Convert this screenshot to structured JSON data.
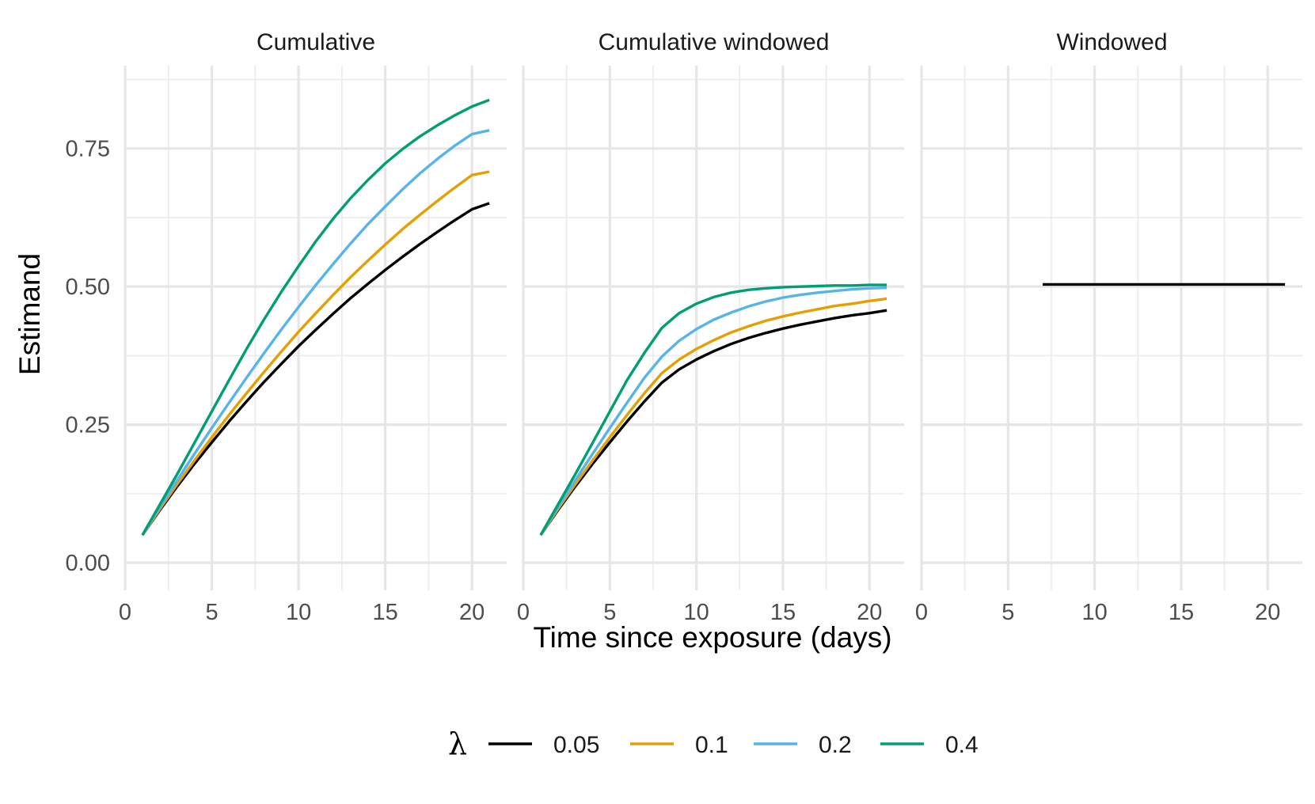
{
  "chart_data": {
    "type": "line",
    "xlabel": "Time since exposure (days)",
    "ylabel": "Estimand",
    "xlim": [
      0,
      22
    ],
    "ylim": [
      -0.05,
      0.9
    ],
    "x_ticks": [
      0,
      5,
      10,
      15,
      20
    ],
    "y_ticks": [
      0.0,
      0.25,
      0.5,
      0.75
    ],
    "y_tick_labels": [
      "0.00",
      "0.25",
      "0.50",
      "0.75"
    ],
    "grid": true,
    "legend": {
      "title": "λ",
      "position": "bottom",
      "entries": [
        {
          "label": "0.05",
          "color": "#000000"
        },
        {
          "label": "0.1",
          "color": "#E69F00"
        },
        {
          "label": "0.2",
          "color": "#56B4E9"
        },
        {
          "label": "0.4",
          "color": "#009E73"
        }
      ]
    },
    "panels": [
      {
        "title": "Cumulative",
        "series": [
          {
            "name": "0.05",
            "color": "#000000",
            "x": [
              1,
              2,
              3,
              4,
              5,
              6,
              7,
              8,
              9,
              10,
              11,
              12,
              13,
              14,
              15,
              16,
              17,
              18,
              19,
              20,
              21
            ],
            "y": [
              0.05,
              0.095,
              0.138,
              0.179,
              0.218,
              0.256,
              0.292,
              0.327,
              0.36,
              0.392,
              0.422,
              0.451,
              0.479,
              0.505,
              0.53,
              0.554,
              0.577,
              0.599,
              0.62,
              0.64,
              0.651
            ]
          },
          {
            "name": "0.1",
            "color": "#E69F00",
            "x": [
              1,
              2,
              3,
              4,
              5,
              6,
              7,
              8,
              9,
              10,
              11,
              12,
              13,
              14,
              15,
              16,
              17,
              18,
              19,
              20,
              21
            ],
            "y": [
              0.05,
              0.097,
              0.142,
              0.185,
              0.227,
              0.268,
              0.307,
              0.345,
              0.382,
              0.418,
              0.452,
              0.485,
              0.517,
              0.547,
              0.576,
              0.604,
              0.63,
              0.655,
              0.679,
              0.702,
              0.708
            ]
          },
          {
            "name": "0.2",
            "color": "#56B4E9",
            "x": [
              1,
              2,
              3,
              4,
              5,
              6,
              7,
              8,
              9,
              10,
              11,
              12,
              13,
              14,
              15,
              16,
              17,
              18,
              19,
              20,
              21
            ],
            "y": [
              0.05,
              0.1,
              0.149,
              0.197,
              0.244,
              0.29,
              0.335,
              0.379,
              0.422,
              0.463,
              0.503,
              0.541,
              0.578,
              0.613,
              0.645,
              0.676,
              0.705,
              0.731,
              0.755,
              0.776,
              0.783
            ]
          },
          {
            "name": "0.4",
            "color": "#009E73",
            "x": [
              1,
              2,
              3,
              4,
              5,
              6,
              7,
              8,
              9,
              10,
              11,
              12,
              13,
              14,
              15,
              16,
              17,
              18,
              19,
              20,
              21
            ],
            "y": [
              0.05,
              0.105,
              0.16,
              0.217,
              0.274,
              0.331,
              0.387,
              0.44,
              0.49,
              0.537,
              0.582,
              0.623,
              0.66,
              0.693,
              0.723,
              0.749,
              0.772,
              0.792,
              0.81,
              0.826,
              0.838
            ]
          }
        ]
      },
      {
        "title": "Cumulative windowed",
        "series": [
          {
            "name": "0.05",
            "color": "#000000",
            "x": [
              1,
              2,
              3,
              4,
              5,
              6,
              7,
              8,
              9,
              10,
              11,
              12,
              13,
              14,
              15,
              16,
              17,
              18,
              19,
              20,
              21
            ],
            "y": [
              0.05,
              0.095,
              0.138,
              0.179,
              0.218,
              0.256,
              0.292,
              0.326,
              0.35,
              0.368,
              0.383,
              0.396,
              0.407,
              0.416,
              0.424,
              0.431,
              0.437,
              0.443,
              0.448,
              0.452,
              0.457
            ]
          },
          {
            "name": "0.1",
            "color": "#E69F00",
            "x": [
              1,
              2,
              3,
              4,
              5,
              6,
              7,
              8,
              9,
              10,
              11,
              12,
              13,
              14,
              15,
              16,
              17,
              18,
              19,
              20,
              21
            ],
            "y": [
              0.05,
              0.097,
              0.142,
              0.185,
              0.227,
              0.268,
              0.307,
              0.343,
              0.368,
              0.387,
              0.403,
              0.417,
              0.428,
              0.438,
              0.446,
              0.453,
              0.459,
              0.465,
              0.469,
              0.474,
              0.478
            ]
          },
          {
            "name": "0.2",
            "color": "#56B4E9",
            "x": [
              1,
              2,
              3,
              4,
              5,
              6,
              7,
              8,
              9,
              10,
              11,
              12,
              13,
              14,
              15,
              16,
              17,
              18,
              19,
              20,
              21
            ],
            "y": [
              0.05,
              0.1,
              0.149,
              0.197,
              0.244,
              0.29,
              0.335,
              0.373,
              0.402,
              0.423,
              0.44,
              0.453,
              0.464,
              0.473,
              0.48,
              0.485,
              0.489,
              0.492,
              0.495,
              0.497,
              0.498
            ]
          },
          {
            "name": "0.4",
            "color": "#009E73",
            "x": [
              1,
              2,
              3,
              4,
              5,
              6,
              7,
              8,
              9,
              10,
              11,
              12,
              13,
              14,
              15,
              16,
              17,
              18,
              19,
              20,
              21
            ],
            "y": [
              0.05,
              0.105,
              0.16,
              0.217,
              0.274,
              0.331,
              0.38,
              0.425,
              0.452,
              0.469,
              0.481,
              0.489,
              0.494,
              0.497,
              0.499,
              0.5,
              0.501,
              0.502,
              0.502,
              0.503,
              0.503
            ]
          }
        ]
      },
      {
        "title": "Windowed",
        "series": [
          {
            "name": "0.05",
            "color": "#000000",
            "x": [
              7,
              21
            ],
            "y": [
              0.504,
              0.504
            ]
          }
        ]
      }
    ]
  }
}
